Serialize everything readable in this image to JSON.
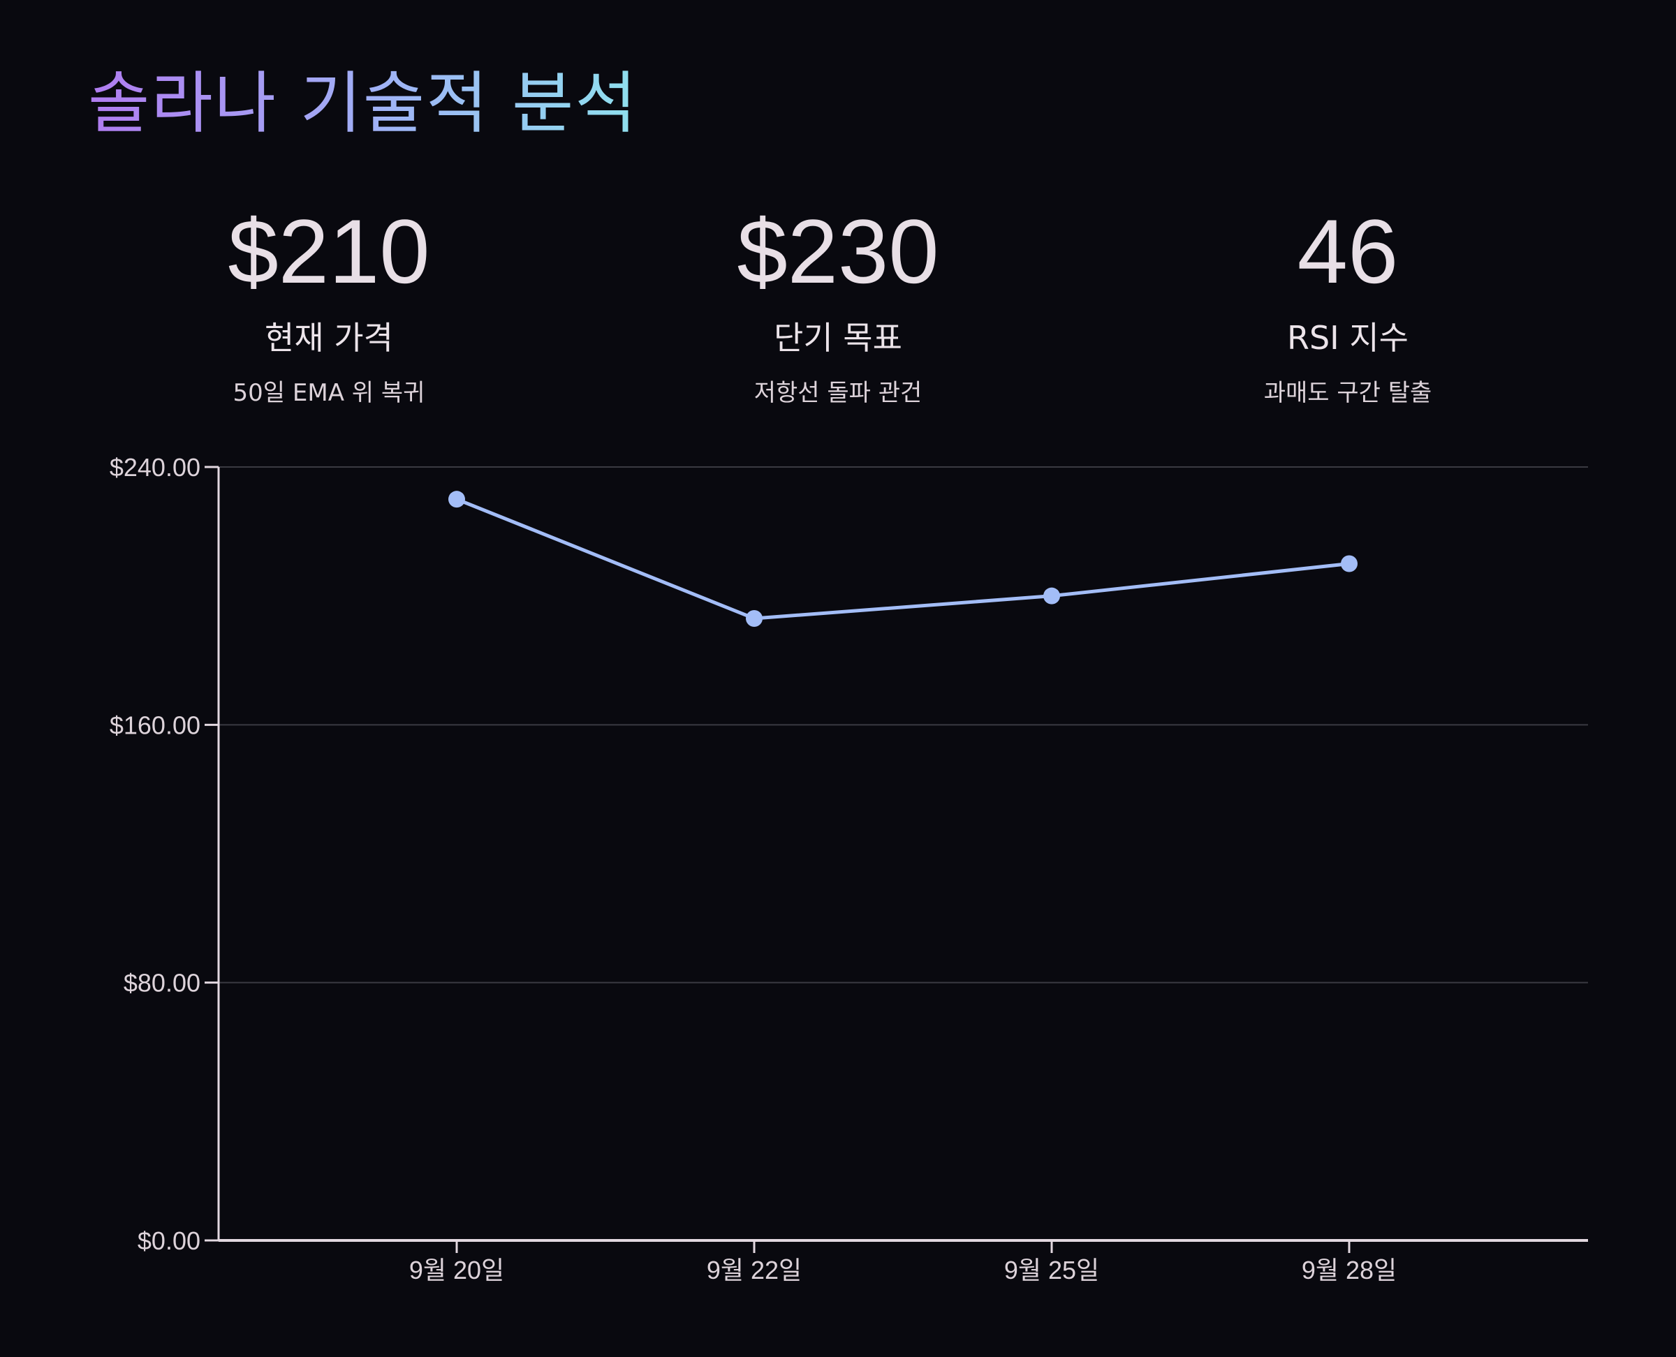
{
  "title": "솔라나 기술적 분석",
  "stats": [
    {
      "value": "$210",
      "label": "현재 가격",
      "note": "50일 EMA 위 복귀"
    },
    {
      "value": "$230",
      "label": "단기 목표",
      "note": "저항선 돌파 관건"
    },
    {
      "value": "46",
      "label": "RSI 지수",
      "note": "과매도 구간 탈출"
    }
  ],
  "colors": {
    "background": "#09090f",
    "line": "#a3bdf7",
    "axis": "#e2d8e0",
    "grid": "#3a3a42",
    "title_gradient": [
      "#b07cf0",
      "#9fb4f6",
      "#8fe0ee"
    ]
  },
  "chart_data": {
    "type": "line",
    "title": "",
    "xlabel": "",
    "ylabel": "",
    "categories": [
      "9월 20일",
      "9월 22일",
      "9월 25일",
      "9월 28일"
    ],
    "series": [
      {
        "values": [
          230,
          193,
          200,
          210
        ]
      }
    ],
    "ylim": [
      0,
      240
    ],
    "yticks": [
      0,
      80,
      160,
      240
    ],
    "ytick_labels": [
      "$0.00",
      "$80.00",
      "$160.00",
      "$240.00"
    ],
    "grid": true,
    "legend": "none"
  }
}
